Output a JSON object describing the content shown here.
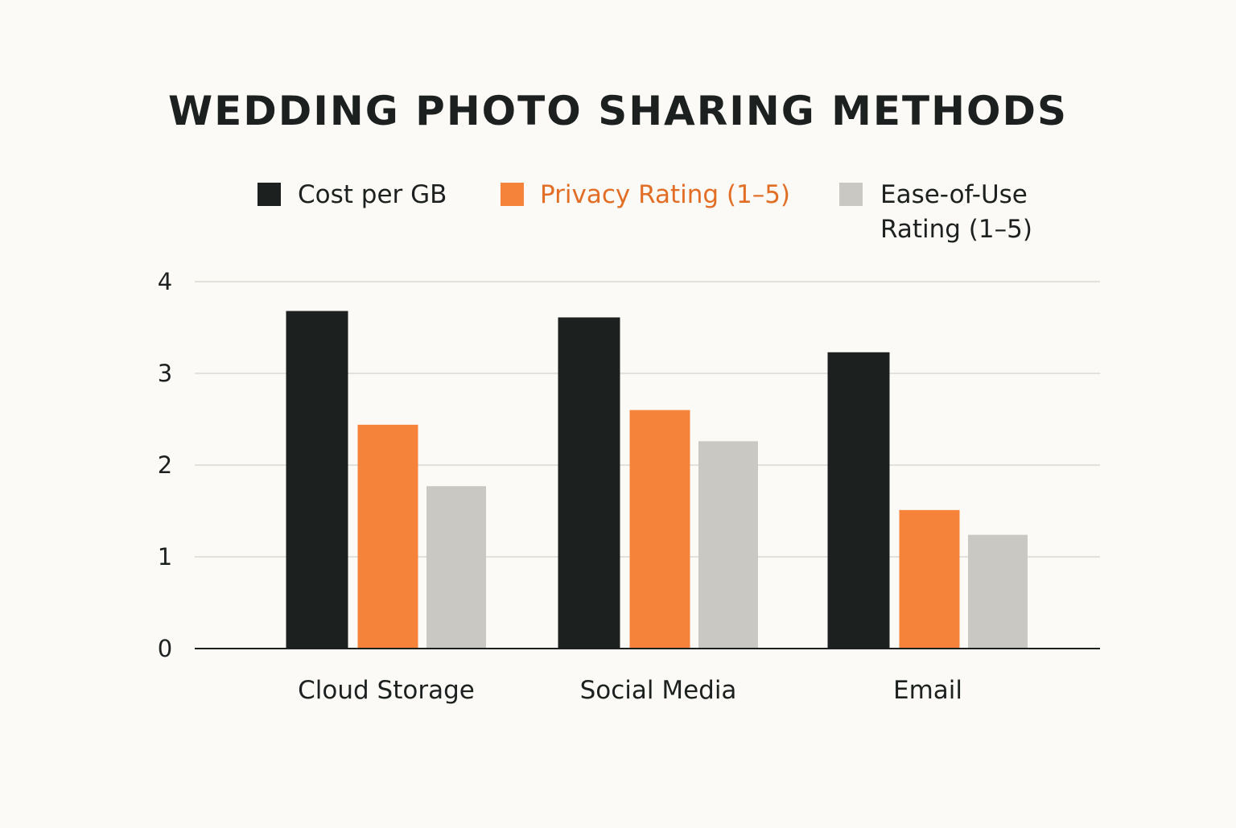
{
  "chart_data": {
    "type": "bar",
    "title": "WEDDING PHOTO SHARING METHODS",
    "xlabel": "",
    "ylabel": "",
    "categories": [
      "Cloud Storage",
      "Social Media",
      "Email"
    ],
    "series": [
      {
        "name": "Cost per GB",
        "values": [
          3.68,
          3.61,
          3.23
        ],
        "color": "#1c2120"
      },
      {
        "name": "Privacy Rating (1–5)",
        "values": [
          2.44,
          2.6,
          1.51
        ],
        "color": "#f5843a"
      },
      {
        "name": "Ease-of-Use Rating (1–5)",
        "name_lines": [
          "Ease-of-Use",
          "Rating (1–5)"
        ],
        "values": [
          1.77,
          2.26,
          1.24
        ],
        "color": "#c9c8c3"
      }
    ],
    "ylim": [
      0,
      4
    ],
    "yticks": [
      0,
      1,
      2,
      3,
      4
    ],
    "grid": true,
    "legend_position": "top",
    "legend_text_colors": [
      "#1c2120",
      "#e26d24",
      "#1c2120"
    ],
    "grid_color": "#e3e1dc",
    "axis_color": "#1c2120",
    "background": "#fcfaf6"
  }
}
